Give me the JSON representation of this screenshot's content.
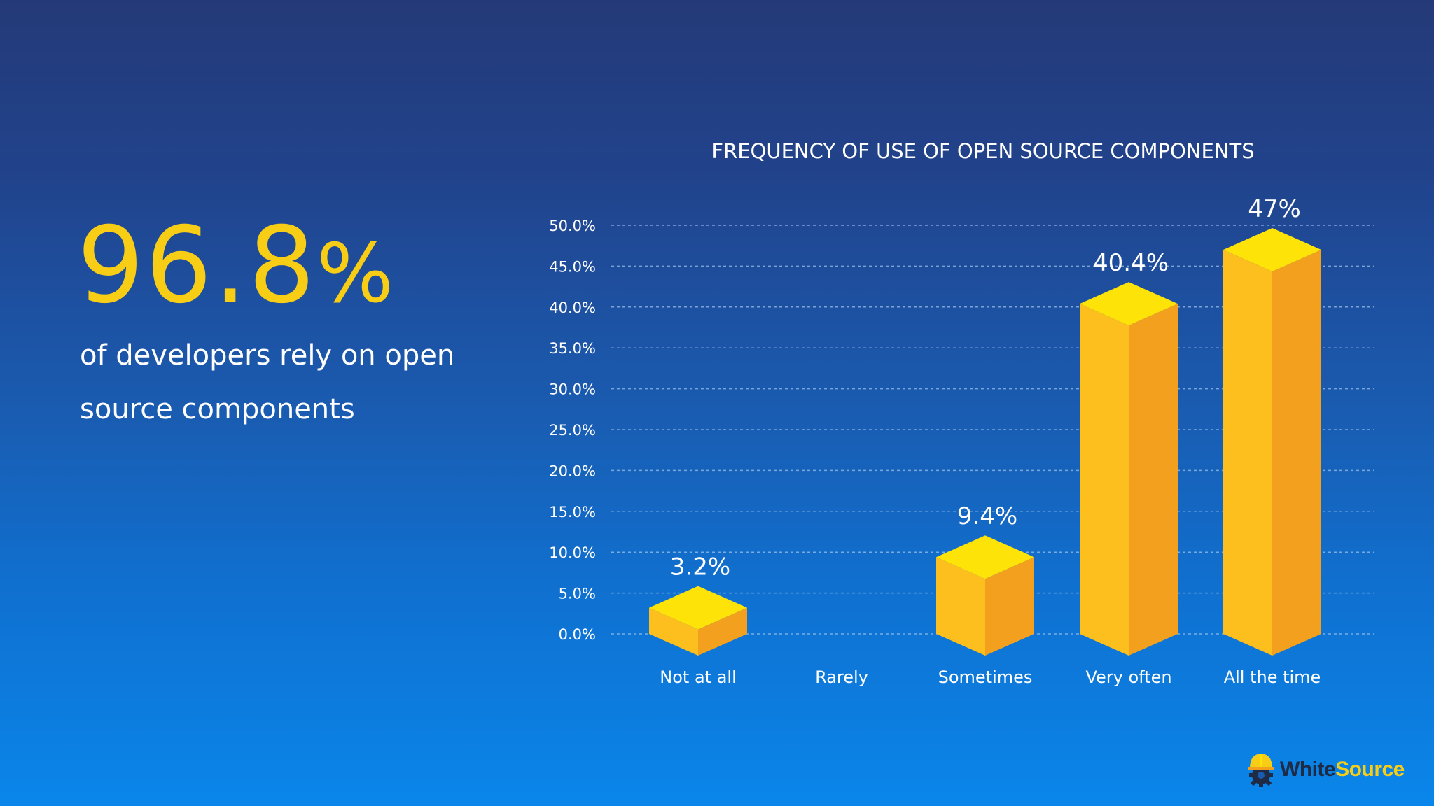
{
  "hero": {
    "value": "96.8",
    "unit": "%",
    "caption_line1": "of developers rely on open",
    "caption_line2": "source components"
  },
  "chart_data": {
    "type": "bar",
    "title": "FREQUENCY OF USE OF OPEN SOURCE COMPONENTS",
    "categories": [
      "Not at all",
      "Rarely",
      "Sometimes",
      "Very often",
      "All the time"
    ],
    "values": [
      3.2,
      0,
      9.4,
      40.4,
      47
    ],
    "data_labels": [
      "3.2%",
      "",
      "9.4%",
      "40.4%",
      "47%"
    ],
    "ylim": [
      0,
      50
    ],
    "yticks": [
      "0.0%",
      "5.0%",
      "10.0%",
      "15.0%",
      "20.0%",
      "25.0%",
      "30.0%",
      "35.0%",
      "40.0%",
      "45.0%",
      "50.0%"
    ],
    "ytick_values": [
      0,
      5,
      10,
      15,
      20,
      25,
      30,
      35,
      40,
      45,
      50
    ],
    "grid": true,
    "legend": "none",
    "xlabel": "",
    "ylabel": "",
    "colors": {
      "front": "#fdbf1d",
      "side": "#f2a01e",
      "top": "#fde307"
    }
  },
  "logo": {
    "text_part1": "White",
    "text_part2": "Source"
  }
}
